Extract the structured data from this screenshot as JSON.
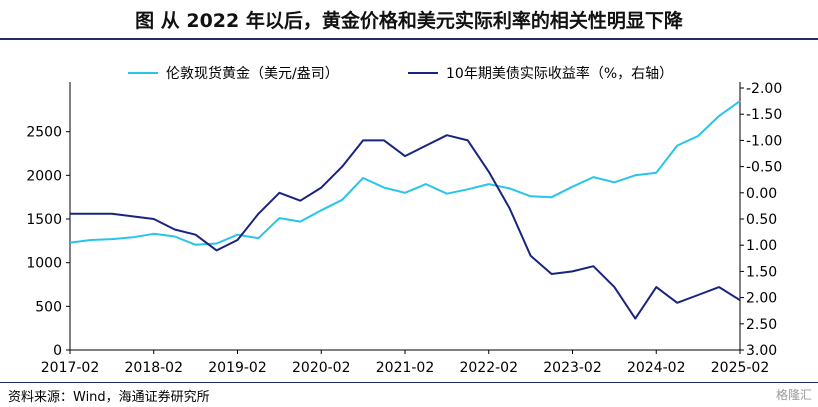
{
  "title": "图    从 2022 年以后，黄金价格和美元实际利率的相关性明显下降",
  "source": "资料来源：Wind，海通证券研究所",
  "watermark": "格隆汇",
  "chart_data": {
    "type": "line",
    "title": "图    从 2022 年以后，黄金价格和美元实际利率的相关性明显下降",
    "legend_position": "top",
    "x_range": [
      "2017-02",
      "2025-02"
    ],
    "x_ticks": [
      "2017-02",
      "2018-02",
      "2019-02",
      "2020-02",
      "2021-02",
      "2022-02",
      "2023-02",
      "2024-02",
      "2025-02"
    ],
    "y_left": {
      "range": [
        0,
        3000
      ],
      "ticks": [
        "0",
        "500",
        "1000",
        "1500",
        "2000",
        "2500"
      ]
    },
    "y_right": {
      "range": [
        -2.0,
        3.0
      ],
      "inverted": true,
      "ticks": [
        "-2.00",
        "-1.50",
        "-1.00",
        "-0.50",
        "0.00",
        "0.50",
        "1.00",
        "1.50",
        "2.00",
        "2.50",
        "3.00"
      ]
    },
    "series": [
      {
        "name": "伦敦现货黄金（美元/盎司）",
        "axis": "left",
        "color": "#29c4ea",
        "x": [
          "2017-02",
          "2017-05",
          "2017-08",
          "2017-11",
          "2018-02",
          "2018-05",
          "2018-08",
          "2018-11",
          "2019-02",
          "2019-05",
          "2019-08",
          "2019-11",
          "2020-02",
          "2020-05",
          "2020-08",
          "2020-11",
          "2021-02",
          "2021-05",
          "2021-08",
          "2021-11",
          "2022-02",
          "2022-05",
          "2022-08",
          "2022-11",
          "2023-02",
          "2023-05",
          "2023-08",
          "2023-11",
          "2024-02",
          "2024-05",
          "2024-08",
          "2024-11",
          "2025-02"
        ],
        "values": [
          1230,
          1260,
          1270,
          1290,
          1330,
          1300,
          1205,
          1220,
          1320,
          1280,
          1510,
          1470,
          1600,
          1720,
          1970,
          1860,
          1800,
          1900,
          1790,
          1840,
          1900,
          1850,
          1760,
          1750,
          1870,
          1980,
          1920,
          2000,
          2030,
          2340,
          2450,
          2680,
          2850
        ]
      },
      {
        "name": "10年期美债实际收益率（%，右轴）",
        "axis": "right",
        "color": "#1a237e",
        "x": [
          "2017-02",
          "2017-05",
          "2017-08",
          "2017-11",
          "2018-02",
          "2018-05",
          "2018-08",
          "2018-11",
          "2019-02",
          "2019-05",
          "2019-08",
          "2019-11",
          "2020-02",
          "2020-05",
          "2020-08",
          "2020-11",
          "2021-02",
          "2021-05",
          "2021-08",
          "2021-11",
          "2022-02",
          "2022-05",
          "2022-08",
          "2022-11",
          "2023-02",
          "2023-05",
          "2023-08",
          "2023-11",
          "2024-02",
          "2024-05",
          "2024-08",
          "2024-11",
          "2025-02"
        ],
        "values": [
          0.4,
          0.4,
          0.4,
          0.45,
          0.5,
          0.7,
          0.8,
          1.1,
          0.9,
          0.4,
          0.0,
          0.15,
          -0.1,
          -0.5,
          -1.0,
          -1.0,
          -0.7,
          -0.9,
          -1.1,
          -1.0,
          -0.4,
          0.3,
          1.2,
          1.55,
          1.5,
          1.4,
          1.8,
          2.4,
          1.8,
          2.1,
          1.95,
          1.8,
          2.05
        ]
      }
    ]
  }
}
